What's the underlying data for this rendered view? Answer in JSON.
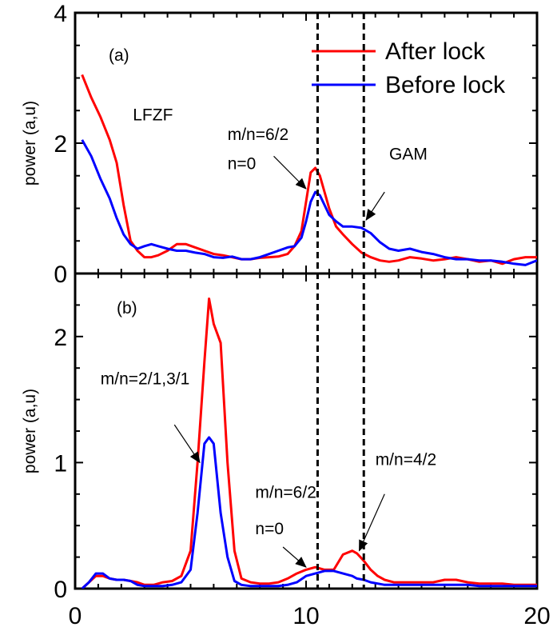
{
  "chart_data": [
    {
      "type": "line",
      "panel_label": "(a)",
      "xlabel": "",
      "ylabel": "power (a,u)",
      "xlim": [
        0,
        20
      ],
      "ylim": [
        0,
        4
      ],
      "yticks": [
        "0",
        "2",
        "4"
      ],
      "legend": {
        "placement": "top-right",
        "entries": [
          "After lock",
          "Before lock"
        ]
      },
      "series": [
        {
          "name": "After lock",
          "color": "#ff0000",
          "x": [
            0.3,
            0.7,
            1.1,
            1.5,
            1.8,
            2.1,
            2.4,
            2.7,
            3.0,
            3.3,
            3.6,
            4.0,
            4.4,
            4.8,
            5.2,
            5.6,
            6.0,
            6.4,
            6.8,
            7.2,
            7.6,
            8.0,
            8.4,
            8.8,
            9.2,
            9.5,
            9.8,
            10.0,
            10.2,
            10.4,
            10.6,
            10.8,
            11.0,
            11.3,
            11.6,
            12.0,
            12.4,
            12.8,
            13.2,
            13.6,
            14.0,
            14.5,
            15.0,
            15.5,
            16.0,
            16.5,
            17.0,
            17.5,
            18.0,
            18.5,
            19.0,
            19.5,
            20.0
          ],
          "y": [
            3.05,
            2.7,
            2.4,
            2.05,
            1.7,
            1.05,
            0.5,
            0.35,
            0.25,
            0.25,
            0.28,
            0.35,
            0.45,
            0.45,
            0.4,
            0.35,
            0.3,
            0.28,
            0.25,
            0.22,
            0.22,
            0.24,
            0.25,
            0.26,
            0.3,
            0.42,
            0.65,
            1.1,
            1.55,
            1.62,
            1.5,
            1.25,
            1.0,
            0.72,
            0.6,
            0.45,
            0.32,
            0.25,
            0.2,
            0.18,
            0.2,
            0.25,
            0.23,
            0.2,
            0.22,
            0.25,
            0.22,
            0.18,
            0.2,
            0.15,
            0.22,
            0.25,
            0.25
          ]
        },
        {
          "name": "Before lock",
          "color": "#0000ff",
          "x": [
            0.3,
            0.7,
            1.1,
            1.5,
            1.8,
            2.1,
            2.4,
            2.7,
            3.0,
            3.3,
            3.6,
            4.0,
            4.4,
            4.8,
            5.2,
            5.6,
            6.0,
            6.4,
            6.8,
            7.2,
            7.6,
            8.0,
            8.4,
            8.8,
            9.2,
            9.5,
            9.8,
            10.0,
            10.2,
            10.4,
            10.6,
            10.8,
            11.0,
            11.3,
            11.6,
            12.0,
            12.4,
            12.8,
            13.2,
            13.6,
            14.0,
            14.5,
            15.0,
            15.5,
            16.0,
            16.5,
            17.0,
            17.5,
            18.0,
            18.5,
            19.0,
            19.5,
            20.0
          ],
          "y": [
            2.05,
            1.8,
            1.45,
            1.15,
            0.85,
            0.6,
            0.45,
            0.38,
            0.42,
            0.45,
            0.42,
            0.38,
            0.35,
            0.35,
            0.32,
            0.3,
            0.25,
            0.24,
            0.26,
            0.22,
            0.22,
            0.25,
            0.3,
            0.35,
            0.4,
            0.42,
            0.55,
            0.8,
            1.1,
            1.25,
            1.2,
            1.05,
            0.9,
            0.8,
            0.72,
            0.72,
            0.7,
            0.62,
            0.48,
            0.38,
            0.35,
            0.38,
            0.33,
            0.3,
            0.25,
            0.22,
            0.22,
            0.2,
            0.2,
            0.18,
            0.15,
            0.13,
            0.2
          ]
        }
      ],
      "vlines": [
        10.5,
        12.5
      ],
      "annotations": [
        {
          "text": "LFZF",
          "x": 2.5,
          "y": 2.35
        },
        {
          "text": "m/n=6/2",
          "x": 6.6,
          "y": 2.05
        },
        {
          "text": "n=0",
          "x": 6.6,
          "y": 1.6
        },
        {
          "text": "GAM",
          "x": 13.6,
          "y": 1.75
        }
      ],
      "arrows": [
        {
          "from": [
            8.6,
            1.8
          ],
          "to": [
            10.0,
            1.3
          ]
        },
        {
          "from": [
            13.4,
            1.25
          ],
          "to": [
            12.6,
            0.82
          ]
        }
      ]
    },
    {
      "type": "line",
      "panel_label": "(b)",
      "xlabel": "",
      "ylabel": "power (a,u)",
      "xlim": [
        0,
        20
      ],
      "ylim": [
        0,
        2.5
      ],
      "yticks": [
        "0",
        "1",
        "2"
      ],
      "xticks": [
        "0",
        "10",
        "20"
      ],
      "series": [
        {
          "name": "After lock",
          "color": "#ff0000",
          "x": [
            0.3,
            0.6,
            0.9,
            1.2,
            1.5,
            1.8,
            2.1,
            2.4,
            2.7,
            3.0,
            3.4,
            3.8,
            4.2,
            4.6,
            5.0,
            5.3,
            5.6,
            5.8,
            6.0,
            6.3,
            6.6,
            6.9,
            7.2,
            7.6,
            8.0,
            8.4,
            8.8,
            9.2,
            9.6,
            10.0,
            10.4,
            10.8,
            11.2,
            11.6,
            12.0,
            12.2,
            12.5,
            12.8,
            13.1,
            13.4,
            13.8,
            14.2,
            14.6,
            15.0,
            15.5,
            16.0,
            16.5,
            17.0,
            17.5,
            18.0,
            18.5,
            19.0,
            19.5,
            20.0
          ],
          "y": [
            0.0,
            0.05,
            0.1,
            0.1,
            0.08,
            0.07,
            0.07,
            0.06,
            0.05,
            0.03,
            0.03,
            0.05,
            0.06,
            0.1,
            0.3,
            1.0,
            1.8,
            2.3,
            2.1,
            1.95,
            1.0,
            0.3,
            0.08,
            0.05,
            0.04,
            0.04,
            0.05,
            0.08,
            0.12,
            0.15,
            0.17,
            0.15,
            0.15,
            0.27,
            0.3,
            0.28,
            0.22,
            0.15,
            0.1,
            0.07,
            0.05,
            0.05,
            0.05,
            0.05,
            0.05,
            0.07,
            0.07,
            0.05,
            0.04,
            0.04,
            0.04,
            0.03,
            0.03,
            0.03
          ]
        },
        {
          "name": "Before lock",
          "color": "#0000ff",
          "x": [
            0.3,
            0.6,
            0.9,
            1.2,
            1.5,
            1.8,
            2.1,
            2.4,
            2.7,
            3.0,
            3.4,
            3.8,
            4.2,
            4.6,
            5.0,
            5.3,
            5.6,
            5.8,
            6.0,
            6.3,
            6.6,
            6.9,
            7.2,
            7.6,
            8.0,
            8.4,
            8.8,
            9.2,
            9.6,
            10.0,
            10.4,
            10.8,
            11.2,
            11.6,
            12.0,
            12.2,
            12.5,
            12.8,
            13.1,
            13.4,
            13.8,
            14.2,
            14.6,
            15.0,
            15.5,
            16.0,
            16.5,
            17.0,
            17.5,
            18.0,
            18.5,
            19.0,
            19.5,
            20.0
          ],
          "y": [
            0.0,
            0.05,
            0.12,
            0.12,
            0.08,
            0.07,
            0.07,
            0.06,
            0.03,
            0.02,
            0.02,
            0.02,
            0.03,
            0.05,
            0.15,
            0.6,
            1.15,
            1.2,
            1.15,
            0.6,
            0.25,
            0.06,
            0.03,
            0.02,
            0.02,
            0.02,
            0.02,
            0.03,
            0.05,
            0.1,
            0.12,
            0.14,
            0.14,
            0.12,
            0.1,
            0.08,
            0.07,
            0.05,
            0.04,
            0.03,
            0.03,
            0.03,
            0.03,
            0.03,
            0.03,
            0.03,
            0.03,
            0.03,
            0.02,
            0.02,
            0.02,
            0.02,
            0.02,
            0.02
          ]
        }
      ],
      "vlines": [
        10.5,
        12.5
      ],
      "annotations": [
        {
          "text": "m/n=2/1,3/1",
          "x": 1.1,
          "y": 1.62
        },
        {
          "text": "m/n=6/2",
          "x": 7.8,
          "y": 0.72
        },
        {
          "text": "n=0",
          "x": 7.8,
          "y": 0.43
        },
        {
          "text": "m/n=4/2",
          "x": 13.0,
          "y": 0.98
        }
      ],
      "arrows": [
        {
          "from": [
            4.3,
            1.3
          ],
          "to": [
            5.4,
            1.0
          ]
        },
        {
          "from": [
            9.0,
            0.33
          ],
          "to": [
            10.0,
            0.17
          ]
        },
        {
          "from": [
            13.4,
            0.75
          ],
          "to": [
            12.3,
            0.3
          ]
        }
      ]
    }
  ]
}
